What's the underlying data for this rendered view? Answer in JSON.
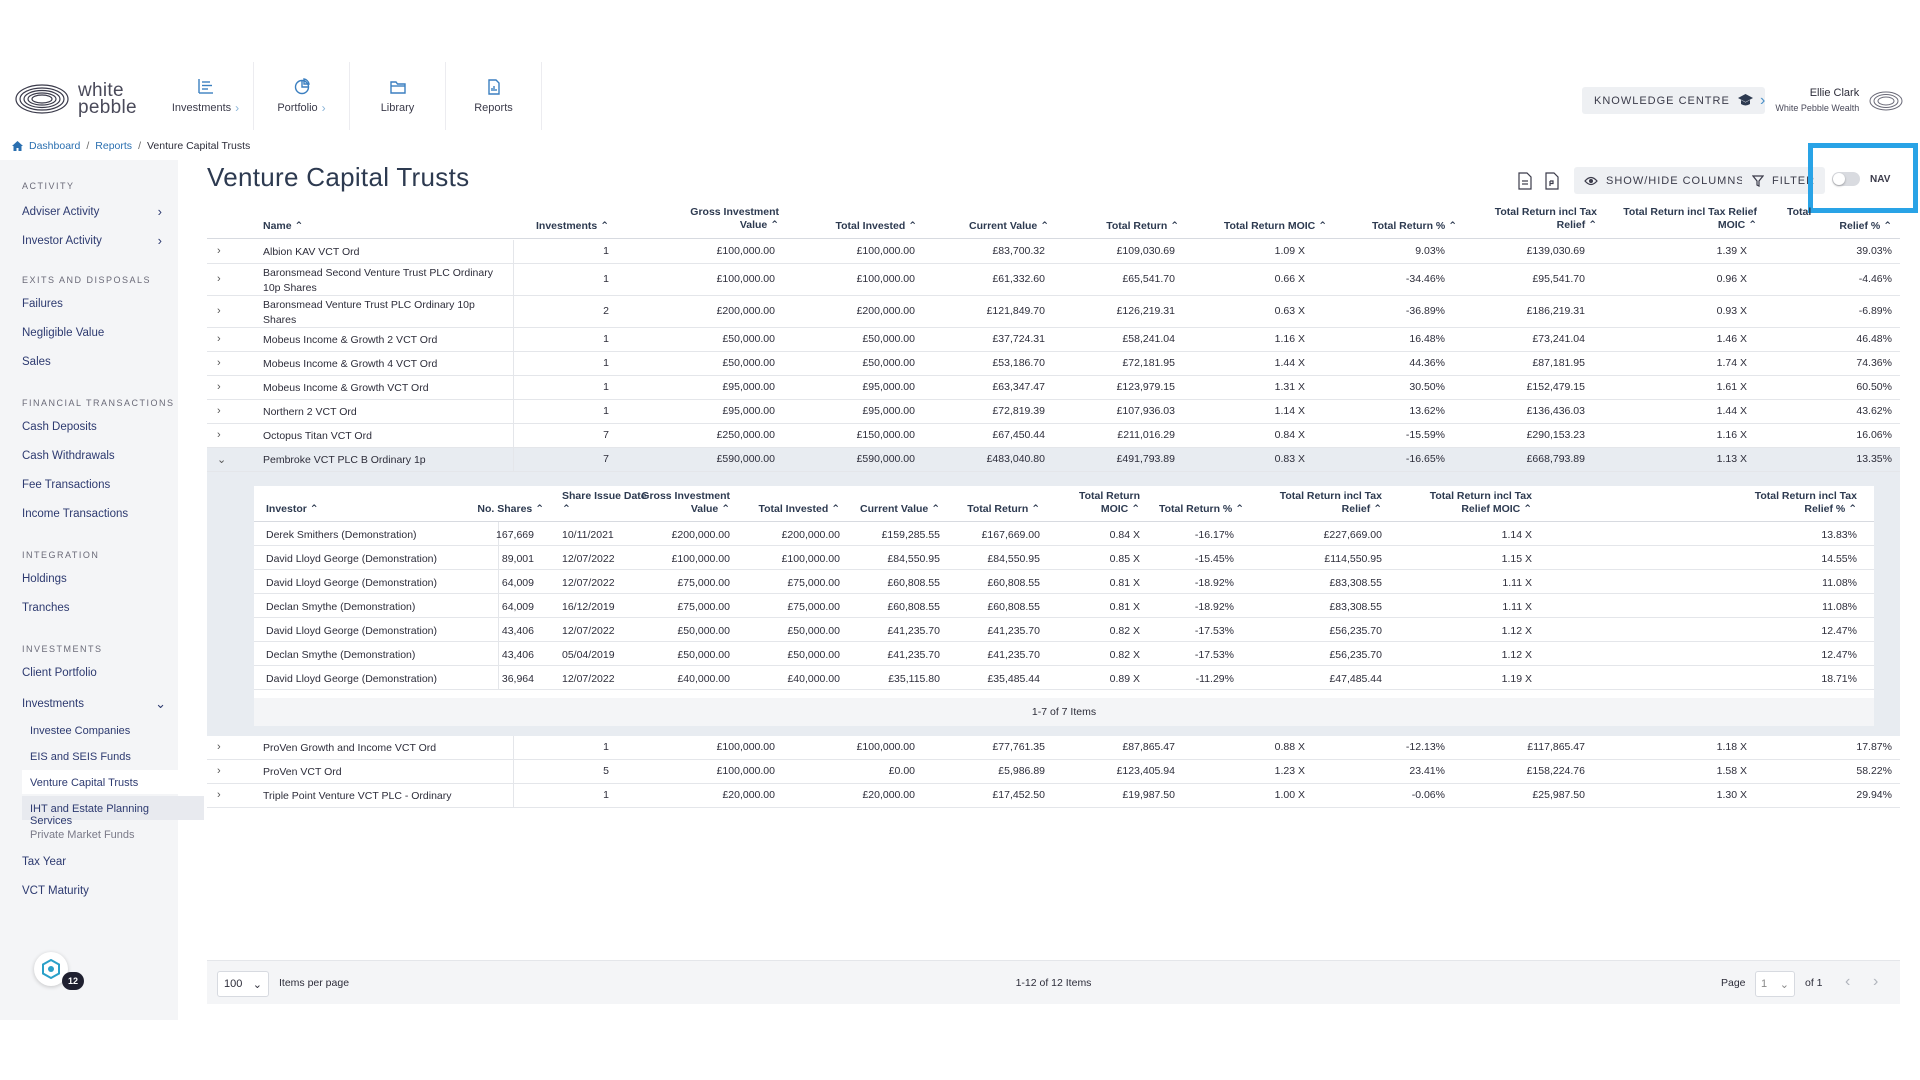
{
  "logo": {
    "text_line1": "white",
    "text_line2": "pebble"
  },
  "nav": [
    {
      "label": "Investments",
      "icon": "list-chart-icon",
      "has_chevron": true
    },
    {
      "label": "Portfolio",
      "icon": "pie-chart-icon",
      "has_chevron": true
    },
    {
      "label": "Library",
      "icon": "folder-icon",
      "has_chevron": false
    },
    {
      "label": "Reports",
      "icon": "report-doc-icon",
      "has_chevron": false
    }
  ],
  "knowledge_centre": {
    "label": "KNOWLEDGE CENTRE",
    "icon": "graduation-cap-icon"
  },
  "user": {
    "name": "Ellie Clark",
    "org": "White Pebble Wealth"
  },
  "breadcrumb": {
    "home": "Dashboard",
    "reports": "Reports",
    "current": "Venture Capital Trusts"
  },
  "sidebar": {
    "groups": {
      "activity": "ACTIVITY",
      "exits": "EXITS AND DISPOSALS",
      "financial": "FINANCIAL TRANSACTIONS",
      "integration": "INTEGRATION",
      "investments": "INVESTMENTS"
    },
    "items": {
      "adviser_activity": "Adviser Activity",
      "investor_activity": "Investor Activity",
      "failures": "Failures",
      "negligible_value": "Negligible Value",
      "sales": "Sales",
      "cash_deposits": "Cash Deposits",
      "cash_withdrawals": "Cash Withdrawals",
      "fee_transactions": "Fee Transactions",
      "income_transactions": "Income Transactions",
      "holdings": "Holdings",
      "tranches": "Tranches",
      "client_portfolio": "Client Portfolio",
      "investments": "Investments",
      "investee_companies": "Investee Companies",
      "eis_seis": "EIS and SEIS Funds",
      "vct": "Venture Capital Trusts",
      "iht": "IHT and Estate Planning Services",
      "private_market": "Private Market Funds",
      "tax_year": "Tax Year",
      "vct_maturity": "VCT Maturity"
    },
    "badge_count": "12"
  },
  "page": {
    "title": "Venture Capital Trusts"
  },
  "toolbar": {
    "show_hide": "SHOW/HIDE COLUMNS",
    "filter": "FILTER",
    "nav_toggle": "NAV"
  },
  "table": {
    "columns": {
      "name": "Name",
      "investments": "Investments",
      "gross_l1": "Gross Investment",
      "gross_l2": "Value",
      "total_invested": "Total Invested",
      "current_value": "Current Value",
      "total_return": "Total Return",
      "moic": "Total Return MOIC",
      "return_pct": "Total Return %",
      "tax_relief_l1": "Total Return incl Tax",
      "tax_relief_l2": "Relief",
      "tax_moic_l1": "Total Return incl Tax Relief",
      "tax_moic_l2": "MOIC",
      "tax_pct_l1": "Total",
      "tax_pct_l2": "Relief %"
    },
    "rows": [
      {
        "name": "Albion KAV VCT Ord",
        "name2": "",
        "investments": "1",
        "gross": "£100,000.00",
        "invested": "£100,000.00",
        "current": "£83,700.32",
        "return": "£109,030.69",
        "moic": "1.09 X",
        "pct": "9.03%",
        "tax_return": "£139,030.69",
        "tax_moic": "1.39 X",
        "tax_pct": "39.03%"
      },
      {
        "name": "Baronsmead Second Venture Trust PLC Ordinary",
        "name2": "10p Shares",
        "investments": "1",
        "gross": "£100,000.00",
        "invested": "£100,000.00",
        "current": "£61,332.60",
        "return": "£65,541.70",
        "moic": "0.66 X",
        "pct": "-34.46%",
        "tax_return": "£95,541.70",
        "tax_moic": "0.96 X",
        "tax_pct": "-4.46%"
      },
      {
        "name": "Baronsmead Venture Trust PLC Ordinary 10p",
        "name2": "Shares",
        "investments": "2",
        "gross": "£200,000.00",
        "invested": "£200,000.00",
        "current": "£121,849.70",
        "return": "£126,219.31",
        "moic": "0.63 X",
        "pct": "-36.89%",
        "tax_return": "£186,219.31",
        "tax_moic": "0.93 X",
        "tax_pct": "-6.89%"
      },
      {
        "name": "Mobeus Income & Growth 2 VCT Ord",
        "name2": "",
        "investments": "1",
        "gross": "£50,000.00",
        "invested": "£50,000.00",
        "current": "£37,724.31",
        "return": "£58,241.04",
        "moic": "1.16 X",
        "pct": "16.48%",
        "tax_return": "£73,241.04",
        "tax_moic": "1.46 X",
        "tax_pct": "46.48%"
      },
      {
        "name": "Mobeus Income & Growth 4 VCT Ord",
        "name2": "",
        "investments": "1",
        "gross": "£50,000.00",
        "invested": "£50,000.00",
        "current": "£53,186.70",
        "return": "£72,181.95",
        "moic": "1.44 X",
        "pct": "44.36%",
        "tax_return": "£87,181.95",
        "tax_moic": "1.74 X",
        "tax_pct": "74.36%"
      },
      {
        "name": "Mobeus Income & Growth VCT Ord",
        "name2": "",
        "investments": "1",
        "gross": "£95,000.00",
        "invested": "£95,000.00",
        "current": "£63,347.47",
        "return": "£123,979.15",
        "moic": "1.31 X",
        "pct": "30.50%",
        "tax_return": "£152,479.15",
        "tax_moic": "1.61 X",
        "tax_pct": "60.50%"
      },
      {
        "name": "Northern 2 VCT Ord",
        "name2": "",
        "investments": "1",
        "gross": "£95,000.00",
        "invested": "£95,000.00",
        "current": "£72,819.39",
        "return": "£107,936.03",
        "moic": "1.14 X",
        "pct": "13.62%",
        "tax_return": "£136,436.03",
        "tax_moic": "1.44 X",
        "tax_pct": "43.62%"
      },
      {
        "name": "Octopus Titan VCT Ord",
        "name2": "",
        "investments": "7",
        "gross": "£250,000.00",
        "invested": "£150,000.00",
        "current": "£67,450.44",
        "return": "£211,016.29",
        "moic": "0.84 X",
        "pct": "-15.59%",
        "tax_return": "£290,153.23",
        "tax_moic": "1.16 X",
        "tax_pct": "16.06%"
      },
      {
        "name": "Pembroke VCT PLC B Ordinary 1p",
        "name2": "",
        "investments": "7",
        "gross": "£590,000.00",
        "invested": "£590,000.00",
        "current": "£483,040.80",
        "return": "£491,793.89",
        "moic": "0.83 X",
        "pct": "-16.65%",
        "tax_return": "£668,793.89",
        "tax_moic": "1.13 X",
        "tax_pct": "13.35%"
      },
      {
        "name": "ProVen Growth and Income VCT Ord",
        "name2": "",
        "investments": "1",
        "gross": "£100,000.00",
        "invested": "£100,000.00",
        "current": "£77,761.35",
        "return": "£87,865.47",
        "moic": "0.88 X",
        "pct": "-12.13%",
        "tax_return": "£117,865.47",
        "tax_moic": "1.18 X",
        "tax_pct": "17.87%"
      },
      {
        "name": "ProVen VCT Ord",
        "name2": "",
        "investments": "5",
        "gross": "£100,000.00",
        "invested": "£0.00",
        "current": "£5,986.89",
        "return": "£123,405.94",
        "moic": "1.23 X",
        "pct": "23.41%",
        "tax_return": "£158,224.76",
        "tax_moic": "1.58 X",
        "tax_pct": "58.22%"
      },
      {
        "name": "Triple Point Venture VCT PLC - Ordinary",
        "name2": "",
        "investments": "1",
        "gross": "£20,000.00",
        "invested": "£20,000.00",
        "current": "£17,452.50",
        "return": "£19,987.50",
        "moic": "1.00 X",
        "pct": "-0.06%",
        "tax_return": "£25,987.50",
        "tax_moic": "1.30 X",
        "tax_pct": "29.94%"
      }
    ]
  },
  "detail": {
    "columns": {
      "investor": "Investor",
      "shares": "No. Shares",
      "date": "Share Issue Date",
      "gross_l1": "Gross Investment",
      "gross_l2": "Value",
      "invested": "Total Invested",
      "current": "Current Value",
      "return": "Total Return",
      "moic_l1": "Total Return",
      "moic_l2": "MOIC",
      "pct": "Total Return %",
      "tax_l1": "Total Return incl Tax",
      "tax_l2": "Relief",
      "tax_moic_l1": "Total Return incl Tax",
      "tax_moic_l2": "Relief MOIC",
      "tax_pct_l1": "Total Return incl Tax",
      "tax_pct_l2": "Relief %"
    },
    "rows": [
      {
        "investor": "Derek Smithers (Demonstration)",
        "shares": "167,669",
        "date": "10/11/2021",
        "gross": "£200,000.00",
        "invested": "£200,000.00",
        "current": "£159,285.55",
        "return": "£167,669.00",
        "moic": "0.84 X",
        "pct": "-16.17%",
        "tax_return": "£227,669.00",
        "tax_moic": "1.14 X",
        "tax_pct": "13.83%"
      },
      {
        "investor": "David Lloyd George (Demonstration)",
        "shares": "89,001",
        "date": "12/07/2022",
        "gross": "£100,000.00",
        "invested": "£100,000.00",
        "current": "£84,550.95",
        "return": "£84,550.95",
        "moic": "0.85 X",
        "pct": "-15.45%",
        "tax_return": "£114,550.95",
        "tax_moic": "1.15 X",
        "tax_pct": "14.55%"
      },
      {
        "investor": "David Lloyd George (Demonstration)",
        "shares": "64,009",
        "date": "12/07/2022",
        "gross": "£75,000.00",
        "invested": "£75,000.00",
        "current": "£60,808.55",
        "return": "£60,808.55",
        "moic": "0.81 X",
        "pct": "-18.92%",
        "tax_return": "£83,308.55",
        "tax_moic": "1.11 X",
        "tax_pct": "11.08%"
      },
      {
        "investor": "Declan Smythe (Demonstration)",
        "shares": "64,009",
        "date": "16/12/2019",
        "gross": "£75,000.00",
        "invested": "£75,000.00",
        "current": "£60,808.55",
        "return": "£60,808.55",
        "moic": "0.81 X",
        "pct": "-18.92%",
        "tax_return": "£83,308.55",
        "tax_moic": "1.11 X",
        "tax_pct": "11.08%"
      },
      {
        "investor": "David Lloyd George (Demonstration)",
        "shares": "43,406",
        "date": "12/07/2022",
        "gross": "£50,000.00",
        "invested": "£50,000.00",
        "current": "£41,235.70",
        "return": "£41,235.70",
        "moic": "0.82 X",
        "pct": "-17.53%",
        "tax_return": "£56,235.70",
        "tax_moic": "1.12 X",
        "tax_pct": "12.47%"
      },
      {
        "investor": "Declan Smythe (Demonstration)",
        "shares": "43,406",
        "date": "05/04/2019",
        "gross": "£50,000.00",
        "invested": "£50,000.00",
        "current": "£41,235.70",
        "return": "£41,235.70",
        "moic": "0.82 X",
        "pct": "-17.53%",
        "tax_return": "£56,235.70",
        "tax_moic": "1.12 X",
        "tax_pct": "12.47%"
      },
      {
        "investor": "David Lloyd George (Demonstration)",
        "shares": "36,964",
        "date": "12/07/2022",
        "gross": "£40,000.00",
        "invested": "£40,000.00",
        "current": "£35,115.80",
        "return": "£35,485.44",
        "moic": "0.89 X",
        "pct": "-11.29%",
        "tax_return": "£47,485.44",
        "tax_moic": "1.19 X",
        "tax_pct": "18.71%"
      }
    ],
    "pager": "1-7 of 7 Items"
  },
  "footer": {
    "items_per_page_value": "100",
    "items_per_page_label": "Items per page",
    "range": "1-12 of 12 Items",
    "page_label": "Page",
    "page_value": "1",
    "of_label": "of 1"
  }
}
